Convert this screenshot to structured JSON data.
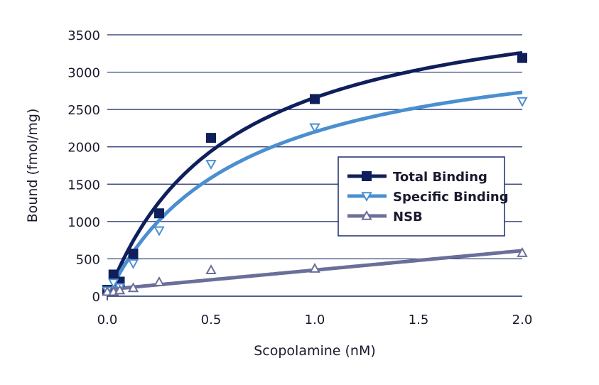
{
  "chart_data": {
    "type": "scatter",
    "xlabel": "Scopolamine (nM)",
    "ylabel": "Bound (fmol/mg)",
    "xlim": [
      0,
      2.0
    ],
    "ylim": [
      0,
      3500
    ],
    "xticks": [
      "0.0",
      "0.5",
      "1.0",
      "1.5",
      "2.0"
    ],
    "xtick_values": [
      0,
      0.5,
      1.0,
      1.5,
      2.0
    ],
    "yticks": [
      0,
      500,
      1000,
      1500,
      2000,
      2500,
      3000,
      3500
    ],
    "grid": "horizontal",
    "legend_placement": "center-right",
    "x": [
      0,
      0.03,
      0.06,
      0.125,
      0.25,
      0.5,
      1.0,
      2.0
    ],
    "series": [
      {
        "name": "Total Binding",
        "marker": "square",
        "color": "#0f1f5c",
        "values": [
          85,
          290,
          195,
          570,
          1110,
          2120,
          2640,
          3190
        ]
      },
      {
        "name": "Specific Binding",
        "marker": "triangle-down",
        "color": "#4a8fd0",
        "values": [
          75,
          180,
          120,
          440,
          880,
          1770,
          2260,
          2610
        ]
      },
      {
        "name": "NSB",
        "marker": "triangle-up",
        "color": "#6a6f9a",
        "values": [
          60,
          60,
          80,
          110,
          190,
          350,
          370,
          580
        ]
      }
    ]
  }
}
